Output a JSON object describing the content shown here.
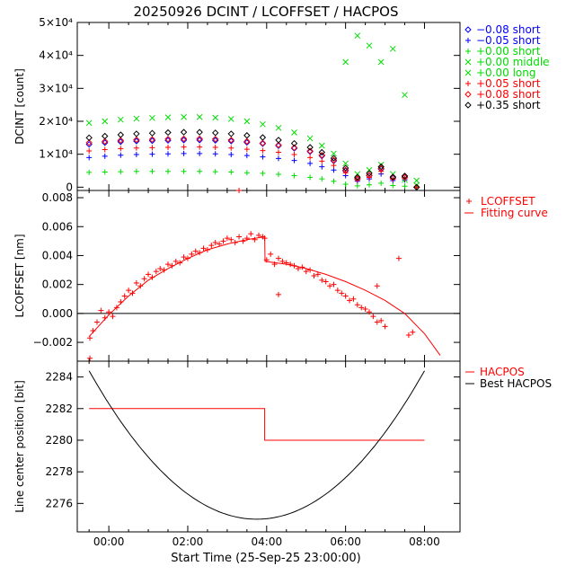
{
  "title": "20250926 DCINT / LCOFFSET / HACPOS",
  "xaxis": {
    "label": "Start Time (25-Sep-25 23:00:00)",
    "ticks": [
      {
        "v": 1,
        "label": "00:00"
      },
      {
        "v": 3,
        "label": "02:00"
      },
      {
        "v": 5,
        "label": "04:00"
      },
      {
        "v": 7,
        "label": "06:00"
      },
      {
        "v": 9,
        "label": "08:00"
      }
    ],
    "range": [
      0.2,
      9.9
    ]
  },
  "chart_data": [
    {
      "type": "scatter",
      "id": "dcint",
      "title": "DCINT",
      "ylabel": "DCINT [count]",
      "ylim": [
        -1000,
        50000
      ],
      "yticks": [
        {
          "v": 0,
          "label": "0"
        },
        {
          "v": 10000,
          "label": "1×10⁴"
        },
        {
          "v": 20000,
          "label": "2×10⁴"
        },
        {
          "v": 30000,
          "label": "3×10⁴"
        },
        {
          "v": 40000,
          "label": "4×10⁴"
        },
        {
          "v": 50000,
          "label": "5×10⁴"
        }
      ],
      "x": [
        0.5,
        0.9,
        1.3,
        1.7,
        2.1,
        2.5,
        2.9,
        3.3,
        3.7,
        4.1,
        4.5,
        4.9,
        5.3,
        5.7,
        6.1,
        6.4,
        6.7,
        7.0,
        7.3,
        7.6,
        7.9,
        8.2,
        8.5,
        8.8
      ],
      "series": [
        {
          "name": "-0.08 short",
          "label": "−0.08 short",
          "color": "#0000ff",
          "marker": "diamond",
          "values": [
            13000,
            13500,
            13800,
            14000,
            14100,
            14200,
            14300,
            14300,
            14200,
            14000,
            13600,
            13200,
            12600,
            11800,
            10800,
            9500,
            8000,
            5000,
            2500,
            3500,
            5500,
            2800,
            3000,
            0
          ]
        },
        {
          "name": "-0.05 short",
          "label": "−0.05 short",
          "color": "#0000ff",
          "marker": "plus",
          "values": [
            9000,
            9400,
            9700,
            9900,
            10000,
            10100,
            10200,
            10200,
            10100,
            9900,
            9600,
            9200,
            8700,
            8100,
            7200,
            6200,
            5200,
            3500,
            1800,
            2500,
            4000,
            2000,
            2200,
            0
          ]
        },
        {
          "name": "+0.00 short",
          "label": "+0.00 short",
          "color": "#00dd00",
          "marker": "plus",
          "values": [
            4500,
            4600,
            4700,
            4800,
            4800,
            4800,
            4800,
            4800,
            4700,
            4600,
            4400,
            4200,
            3900,
            3500,
            3000,
            2500,
            1800,
            900,
            400,
            700,
            1200,
            500,
            300,
            0
          ]
        },
        {
          "name": "+0.00 middle",
          "label": "+0.00 middle",
          "color": "#00dd00",
          "marker": "cross",
          "values": [
            19500,
            20000,
            20500,
            20800,
            21000,
            21200,
            21300,
            21300,
            21100,
            20700,
            20000,
            19100,
            18000,
            16600,
            14800,
            12600,
            10200,
            7200,
            4000,
            5200,
            6800,
            4000,
            2200,
            600
          ]
        },
        {
          "name": "+0.00 long",
          "label": "+0.00 long",
          "color": "#00dd00",
          "marker": "cross",
          "values": [
            null,
            null,
            null,
            null,
            null,
            null,
            null,
            null,
            null,
            null,
            null,
            null,
            null,
            null,
            null,
            null,
            null,
            38000,
            46000,
            43000,
            38000,
            42000,
            28000,
            2000
          ]
        },
        {
          "name": "+0.05 short",
          "label": "+0.05 short",
          "color": "#ff0000",
          "marker": "plus",
          "values": [
            11000,
            11400,
            11700,
            11900,
            12000,
            12100,
            12200,
            12200,
            12100,
            11900,
            11500,
            11100,
            10600,
            9900,
            9000,
            7900,
            6600,
            4400,
            2200,
            3000,
            4800,
            2400,
            2600,
            0
          ]
        },
        {
          "name": "+0.08 short",
          "label": "+0.08 short",
          "color": "#ff0000",
          "marker": "diamond",
          "values": [
            13500,
            13900,
            14200,
            14400,
            14500,
            14600,
            14700,
            14700,
            14600,
            14300,
            13900,
            13400,
            12800,
            12000,
            11000,
            9700,
            8200,
            5200,
            2600,
            3600,
            5700,
            2900,
            3100,
            0
          ]
        },
        {
          "name": "+0.35 short",
          "label": "+0.35 short",
          "color": "#000000",
          "marker": "diamond",
          "values": [
            15000,
            15500,
            15900,
            16200,
            16400,
            16600,
            16700,
            16700,
            16500,
            16200,
            15700,
            15100,
            14300,
            13300,
            12100,
            10600,
            8800,
            5800,
            3000,
            4200,
            6200,
            3100,
            3400,
            0
          ]
        }
      ]
    },
    {
      "type": "scatter",
      "id": "lcoffset",
      "title": "LCOFFSET",
      "ylabel": "LCOFFSET [nm]",
      "ylim": [
        -0.0033,
        0.0085
      ],
      "yticks": [
        {
          "v": -0.002,
          "label": "−0.002"
        },
        {
          "v": 0.0,
          "label": "0.000"
        },
        {
          "v": 0.002,
          "label": "0.002"
        },
        {
          "v": 0.004,
          "label": "0.004"
        },
        {
          "v": 0.006,
          "label": "0.006"
        },
        {
          "v": 0.008,
          "label": "0.008"
        }
      ],
      "zero_line": 0,
      "legend": [
        {
          "label": "LCOFFSET",
          "color": "#ff0000",
          "marker": "plus"
        },
        {
          "label": "Fitting curve",
          "color": "#ff0000",
          "marker": "line"
        }
      ],
      "x": [
        0.52,
        0.6,
        0.7,
        0.8,
        0.9,
        1.0,
        1.1,
        1.2,
        1.3,
        1.4,
        1.5,
        1.6,
        1.7,
        1.8,
        1.9,
        2.0,
        2.1,
        2.2,
        2.3,
        2.4,
        2.5,
        2.6,
        2.7,
        2.8,
        2.9,
        3.0,
        3.1,
        3.2,
        3.3,
        3.4,
        3.5,
        3.6,
        3.7,
        3.8,
        3.9,
        4.0,
        4.1,
        4.2,
        4.3,
        4.4,
        4.5,
        4.6,
        4.7,
        4.8,
        4.9,
        4.95,
        5.0,
        5.1,
        5.2,
        5.3,
        5.4,
        5.5,
        5.6,
        5.7,
        5.8,
        5.9,
        6.0,
        6.1,
        6.2,
        6.3,
        6.4,
        6.5,
        6.6,
        6.7,
        6.8,
        6.9,
        7.0,
        7.1,
        7.2,
        7.3,
        7.4,
        7.5,
        7.6,
        7.7,
        7.8,
        7.9,
        8.0
      ],
      "points": [
        -0.0017,
        -0.0012,
        -0.0006,
        0.0002,
        -0.0003,
        0.0001,
        -0.0002,
        0.0004,
        0.0008,
        0.0012,
        0.0016,
        0.0014,
        0.0021,
        0.0019,
        0.0024,
        0.0027,
        0.0025,
        0.0029,
        0.0031,
        0.003,
        0.0034,
        0.0033,
        0.0036,
        0.0035,
        0.0039,
        0.0038,
        0.0041,
        0.0043,
        0.0042,
        0.0045,
        0.0044,
        0.0047,
        0.0049,
        0.0048,
        0.005,
        0.0052,
        0.0051,
        0.0049,
        0.0053,
        0.005,
        0.0052,
        0.0055,
        0.0051,
        0.0054,
        0.0053,
        0.0052,
        0.0037,
        0.0041,
        0.0034,
        0.0038,
        0.0036,
        0.0035,
        0.0034,
        0.0033,
        0.0031,
        0.0032,
        0.0029,
        0.003,
        0.0026,
        0.0027,
        0.0023,
        0.0022,
        0.0019,
        0.002,
        0.0016,
        0.0014,
        0.0012,
        0.0009,
        0.001,
        0.0006,
        0.0004,
        0.0003,
        0.0001,
        -0.0002,
        -0.0006,
        -0.0005,
        -0.0009
      ],
      "outliers": [
        {
          "x": 0.52,
          "y": -0.0031
        },
        {
          "x": 4.3,
          "y": 0.0085
        },
        {
          "x": 5.3,
          "y": 0.0013
        },
        {
          "x": 7.8,
          "y": 0.0019
        },
        {
          "x": 8.35,
          "y": 0.0038
        },
        {
          "x": 8.6,
          "y": -0.0015
        },
        {
          "x": 8.7,
          "y": -0.0013
        }
      ],
      "fit_curve": {
        "x": [
          0.5,
          1.0,
          1.5,
          2.0,
          2.5,
          3.0,
          3.5,
          4.0,
          4.5,
          4.95,
          4.96,
          5.5,
          6.0,
          6.5,
          7.0,
          7.5,
          8.0,
          8.5,
          9.0,
          9.4
        ],
        "y": [
          -0.0016,
          -0.0001,
          0.0012,
          0.0023,
          0.0031,
          0.0038,
          0.0044,
          0.0048,
          0.0051,
          0.0053,
          0.0036,
          0.0034,
          0.0031,
          0.0027,
          0.0022,
          0.0016,
          0.0009,
          0.0,
          -0.0014,
          -0.0029
        ]
      }
    },
    {
      "type": "line",
      "id": "hacpos",
      "title": "HACPOS",
      "ylabel": "Line center position [bit]",
      "ylim": [
        2274.2,
        2285.0
      ],
      "yticks": [
        {
          "v": 2276,
          "label": "2276"
        },
        {
          "v": 2278,
          "label": "2278"
        },
        {
          "v": 2280,
          "label": "2280"
        },
        {
          "v": 2282,
          "label": "2282"
        },
        {
          "v": 2284,
          "label": "2284"
        }
      ],
      "legend": [
        {
          "label": "HACPOS",
          "color": "#ff0000"
        },
        {
          "label": "Best HACPOS",
          "color": "#000000"
        }
      ],
      "series": [
        {
          "name": "HACPOS",
          "color": "#ff0000",
          "step": true,
          "x": [
            0.5,
            4.95,
            4.95,
            9.0
          ],
          "values": [
            2282,
            2282,
            2280,
            2280
          ]
        },
        {
          "name": "Best HACPOS",
          "color": "#000000",
          "parabola": {
            "vertex_x": 4.75,
            "vertex_y": 2275,
            "a": 0.52,
            "x_from": 0.5,
            "x_to": 9.0
          }
        }
      ]
    }
  ]
}
